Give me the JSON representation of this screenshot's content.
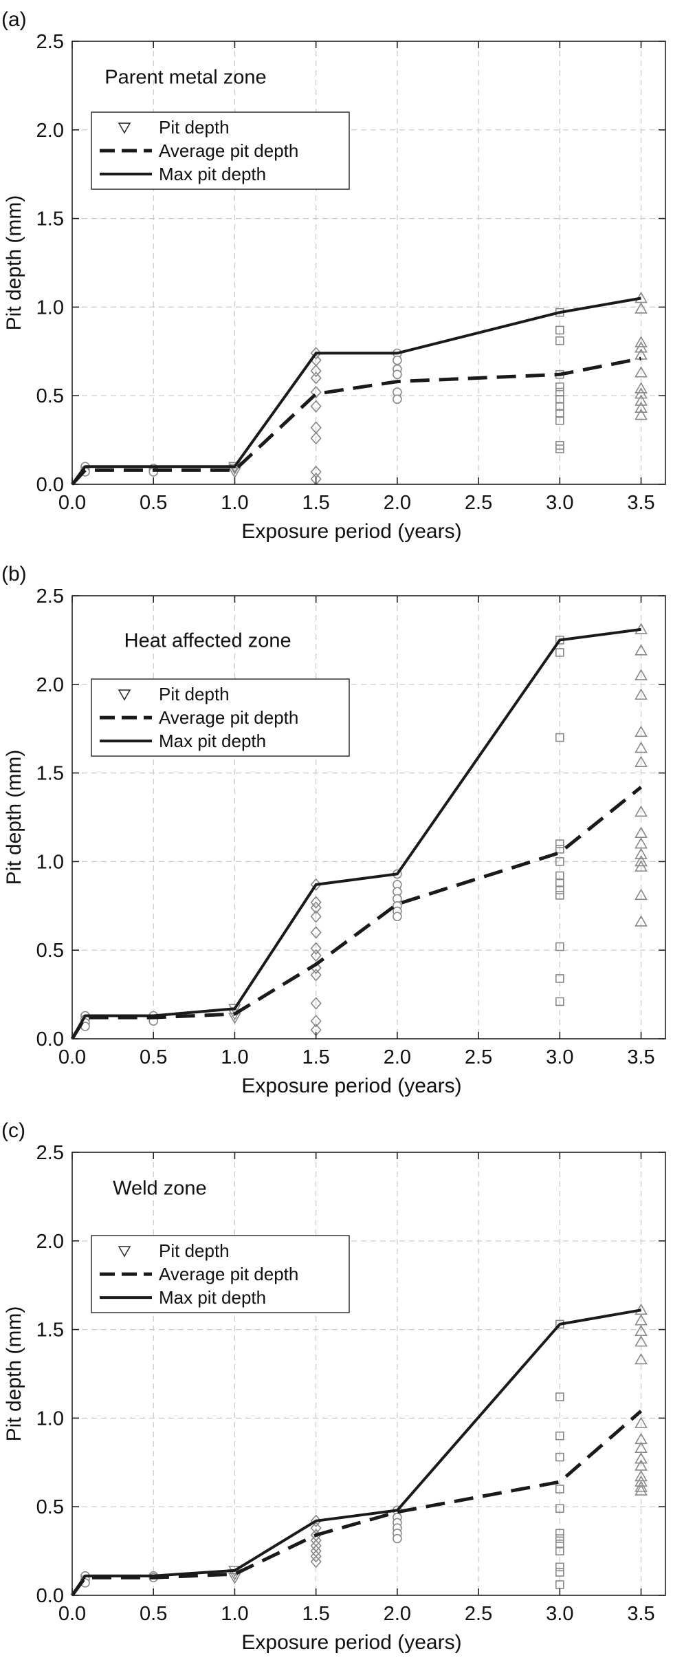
{
  "chart_data": [
    {
      "type": "scatter",
      "panel_label": "(a)",
      "annotation": "Parent metal zone",
      "xlabel": "Exposure period (years)",
      "ylabel": "Pit depth (mm)",
      "xlim": [
        0,
        3.65
      ],
      "ylim": [
        0,
        2.5
      ],
      "xticks": [
        "0.0",
        "0.5",
        "1.0",
        "1.5",
        "2.0",
        "2.5",
        "3.0",
        "3.5"
      ],
      "yticks": [
        "0.0",
        "0.5",
        "1.0",
        "1.5",
        "2.0",
        "2.5"
      ],
      "grid": "dashed",
      "legend": [
        {
          "label": "Pit depth",
          "style": "marker"
        },
        {
          "label": "Average pit depth",
          "style": "dashed"
        },
        {
          "label": "Max pit depth",
          "style": "solid"
        }
      ],
      "points": [
        {
          "x": 0.08,
          "y": 0.1,
          "m": "circle"
        },
        {
          "x": 0.08,
          "y": 0.08,
          "m": "circle"
        },
        {
          "x": 0.08,
          "y": 0.07,
          "m": "circle"
        },
        {
          "x": 0.5,
          "y": 0.09,
          "m": "circle"
        },
        {
          "x": 0.5,
          "y": 0.08,
          "m": "circle"
        },
        {
          "x": 0.5,
          "y": 0.07,
          "m": "circle"
        },
        {
          "x": 1.0,
          "y": 0.1,
          "m": "tri-down"
        },
        {
          "x": 1.0,
          "y": 0.09,
          "m": "tri-down"
        },
        {
          "x": 1.0,
          "y": 0.07,
          "m": "tri-down"
        },
        {
          "x": 1.5,
          "y": 0.74,
          "m": "diamond"
        },
        {
          "x": 1.5,
          "y": 0.7,
          "m": "diamond"
        },
        {
          "x": 1.5,
          "y": 0.64,
          "m": "diamond"
        },
        {
          "x": 1.5,
          "y": 0.6,
          "m": "diamond"
        },
        {
          "x": 1.5,
          "y": 0.52,
          "m": "diamond"
        },
        {
          "x": 1.5,
          "y": 0.44,
          "m": "diamond"
        },
        {
          "x": 1.5,
          "y": 0.32,
          "m": "diamond"
        },
        {
          "x": 1.5,
          "y": 0.26,
          "m": "diamond"
        },
        {
          "x": 1.5,
          "y": 0.07,
          "m": "diamond"
        },
        {
          "x": 1.5,
          "y": 0.03,
          "m": "diamond"
        },
        {
          "x": 2.0,
          "y": 0.74,
          "m": "circle"
        },
        {
          "x": 2.0,
          "y": 0.7,
          "m": "circle"
        },
        {
          "x": 2.0,
          "y": 0.65,
          "m": "circle"
        },
        {
          "x": 2.0,
          "y": 0.62,
          "m": "circle"
        },
        {
          "x": 2.0,
          "y": 0.52,
          "m": "circle"
        },
        {
          "x": 2.0,
          "y": 0.48,
          "m": "circle"
        },
        {
          "x": 3.0,
          "y": 0.97,
          "m": "square"
        },
        {
          "x": 3.0,
          "y": 0.87,
          "m": "square"
        },
        {
          "x": 3.0,
          "y": 0.81,
          "m": "square"
        },
        {
          "x": 3.0,
          "y": 0.62,
          "m": "square"
        },
        {
          "x": 3.0,
          "y": 0.55,
          "m": "square"
        },
        {
          "x": 3.0,
          "y": 0.52,
          "m": "square"
        },
        {
          "x": 3.0,
          "y": 0.48,
          "m": "square"
        },
        {
          "x": 3.0,
          "y": 0.44,
          "m": "square"
        },
        {
          "x": 3.0,
          "y": 0.4,
          "m": "square"
        },
        {
          "x": 3.0,
          "y": 0.36,
          "m": "square"
        },
        {
          "x": 3.0,
          "y": 0.22,
          "m": "square"
        },
        {
          "x": 3.0,
          "y": 0.2,
          "m": "square"
        },
        {
          "x": 3.5,
          "y": 1.05,
          "m": "tri-up"
        },
        {
          "x": 3.5,
          "y": 0.99,
          "m": "tri-up"
        },
        {
          "x": 3.5,
          "y": 0.8,
          "m": "tri-up"
        },
        {
          "x": 3.5,
          "y": 0.77,
          "m": "tri-up"
        },
        {
          "x": 3.5,
          "y": 0.73,
          "m": "tri-up"
        },
        {
          "x": 3.5,
          "y": 0.63,
          "m": "tri-up"
        },
        {
          "x": 3.5,
          "y": 0.54,
          "m": "tri-up"
        },
        {
          "x": 3.5,
          "y": 0.51,
          "m": "tri-up"
        },
        {
          "x": 3.5,
          "y": 0.47,
          "m": "tri-up"
        },
        {
          "x": 3.5,
          "y": 0.43,
          "m": "tri-up"
        },
        {
          "x": 3.5,
          "y": 0.39,
          "m": "tri-up"
        }
      ],
      "series": [
        {
          "name": "Average pit depth",
          "style": "dashed",
          "x": [
            0,
            0.08,
            0.5,
            1.0,
            1.5,
            2.0,
            3.0,
            3.5
          ],
          "y": [
            0,
            0.08,
            0.08,
            0.08,
            0.51,
            0.58,
            0.62,
            0.71
          ]
        },
        {
          "name": "Max pit depth",
          "style": "solid",
          "x": [
            0,
            0.08,
            0.5,
            1.0,
            1.5,
            2.0,
            3.0,
            3.5
          ],
          "y": [
            0,
            0.1,
            0.1,
            0.1,
            0.74,
            0.74,
            0.97,
            1.05
          ]
        }
      ]
    },
    {
      "type": "scatter",
      "panel_label": "(b)",
      "annotation": "Heat affected zone",
      "xlabel": "Exposure period (years)",
      "ylabel": "Pit depth (mm)",
      "xlim": [
        0,
        3.65
      ],
      "ylim": [
        0,
        2.5
      ],
      "xticks": [
        "0.0",
        "0.5",
        "1.0",
        "1.5",
        "2.0",
        "2.5",
        "3.0",
        "3.5"
      ],
      "yticks": [
        "0.0",
        "0.5",
        "1.0",
        "1.5",
        "2.0",
        "2.5"
      ],
      "grid": "dashed",
      "legend": [
        {
          "label": "Pit depth",
          "style": "marker"
        },
        {
          "label": "Average pit depth",
          "style": "dashed"
        },
        {
          "label": "Max pit depth",
          "style": "solid"
        }
      ],
      "points": [
        {
          "x": 0.08,
          "y": 0.13,
          "m": "circle"
        },
        {
          "x": 0.08,
          "y": 0.11,
          "m": "circle"
        },
        {
          "x": 0.08,
          "y": 0.09,
          "m": "circle"
        },
        {
          "x": 0.08,
          "y": 0.07,
          "m": "circle"
        },
        {
          "x": 0.5,
          "y": 0.13,
          "m": "circle"
        },
        {
          "x": 0.5,
          "y": 0.11,
          "m": "circle"
        },
        {
          "x": 0.5,
          "y": 0.1,
          "m": "circle"
        },
        {
          "x": 1.0,
          "y": 0.17,
          "m": "tri-down"
        },
        {
          "x": 1.0,
          "y": 0.14,
          "m": "tri-down"
        },
        {
          "x": 1.0,
          "y": 0.12,
          "m": "tri-down"
        },
        {
          "x": 1.5,
          "y": 0.87,
          "m": "diamond"
        },
        {
          "x": 1.5,
          "y": 0.77,
          "m": "diamond"
        },
        {
          "x": 1.5,
          "y": 0.74,
          "m": "diamond"
        },
        {
          "x": 1.5,
          "y": 0.69,
          "m": "diamond"
        },
        {
          "x": 1.5,
          "y": 0.6,
          "m": "diamond"
        },
        {
          "x": 1.5,
          "y": 0.51,
          "m": "diamond"
        },
        {
          "x": 1.5,
          "y": 0.47,
          "m": "diamond"
        },
        {
          "x": 1.5,
          "y": 0.4,
          "m": "diamond"
        },
        {
          "x": 1.5,
          "y": 0.36,
          "m": "diamond"
        },
        {
          "x": 1.5,
          "y": 0.2,
          "m": "diamond"
        },
        {
          "x": 1.5,
          "y": 0.1,
          "m": "diamond"
        },
        {
          "x": 1.5,
          "y": 0.05,
          "m": "diamond"
        },
        {
          "x": 2.0,
          "y": 0.93,
          "m": "circle"
        },
        {
          "x": 2.0,
          "y": 0.87,
          "m": "circle"
        },
        {
          "x": 2.0,
          "y": 0.83,
          "m": "circle"
        },
        {
          "x": 2.0,
          "y": 0.79,
          "m": "circle"
        },
        {
          "x": 2.0,
          "y": 0.75,
          "m": "circle"
        },
        {
          "x": 2.0,
          "y": 0.72,
          "m": "circle"
        },
        {
          "x": 2.0,
          "y": 0.69,
          "m": "circle"
        },
        {
          "x": 3.0,
          "y": 2.25,
          "m": "square"
        },
        {
          "x": 3.0,
          "y": 2.18,
          "m": "square"
        },
        {
          "x": 3.0,
          "y": 1.7,
          "m": "square"
        },
        {
          "x": 3.0,
          "y": 1.1,
          "m": "square"
        },
        {
          "x": 3.0,
          "y": 1.07,
          "m": "square"
        },
        {
          "x": 3.0,
          "y": 1.0,
          "m": "square"
        },
        {
          "x": 3.0,
          "y": 0.92,
          "m": "square"
        },
        {
          "x": 3.0,
          "y": 0.88,
          "m": "square"
        },
        {
          "x": 3.0,
          "y": 0.84,
          "m": "square"
        },
        {
          "x": 3.0,
          "y": 0.81,
          "m": "square"
        },
        {
          "x": 3.0,
          "y": 0.52,
          "m": "square"
        },
        {
          "x": 3.0,
          "y": 0.34,
          "m": "square"
        },
        {
          "x": 3.0,
          "y": 0.21,
          "m": "square"
        },
        {
          "x": 3.5,
          "y": 2.31,
          "m": "tri-up"
        },
        {
          "x": 3.5,
          "y": 2.19,
          "m": "tri-up"
        },
        {
          "x": 3.5,
          "y": 2.05,
          "m": "tri-up"
        },
        {
          "x": 3.5,
          "y": 1.94,
          "m": "tri-up"
        },
        {
          "x": 3.5,
          "y": 1.73,
          "m": "tri-up"
        },
        {
          "x": 3.5,
          "y": 1.64,
          "m": "tri-up"
        },
        {
          "x": 3.5,
          "y": 1.56,
          "m": "tri-up"
        },
        {
          "x": 3.5,
          "y": 1.28,
          "m": "tri-up"
        },
        {
          "x": 3.5,
          "y": 1.16,
          "m": "tri-up"
        },
        {
          "x": 3.5,
          "y": 1.1,
          "m": "tri-up"
        },
        {
          "x": 3.5,
          "y": 1.04,
          "m": "tri-up"
        },
        {
          "x": 3.5,
          "y": 1.0,
          "m": "tri-up"
        },
        {
          "x": 3.5,
          "y": 0.97,
          "m": "tri-up"
        },
        {
          "x": 3.5,
          "y": 0.81,
          "m": "tri-up"
        },
        {
          "x": 3.5,
          "y": 0.66,
          "m": "tri-up"
        }
      ],
      "series": [
        {
          "name": "Average pit depth",
          "style": "dashed",
          "x": [
            0,
            0.08,
            0.5,
            1.0,
            1.5,
            2.0,
            3.0,
            3.5
          ],
          "y": [
            0,
            0.12,
            0.12,
            0.14,
            0.42,
            0.76,
            1.05,
            1.42
          ]
        },
        {
          "name": "Max pit depth",
          "style": "solid",
          "x": [
            0,
            0.08,
            0.5,
            1.0,
            1.5,
            2.0,
            3.0,
            3.5
          ],
          "y": [
            0,
            0.13,
            0.13,
            0.17,
            0.87,
            0.93,
            2.25,
            2.31
          ]
        }
      ]
    },
    {
      "type": "scatter",
      "panel_label": "(c)",
      "annotation": "Weld zone",
      "xlabel": "Exposure period (years)",
      "ylabel": "Pit depth (mm)",
      "xlim": [
        0,
        3.65
      ],
      "ylim": [
        0,
        2.5
      ],
      "xticks": [
        "0.0",
        "0.5",
        "1.0",
        "1.5",
        "2.0",
        "2.5",
        "3.0",
        "3.5"
      ],
      "yticks": [
        "0.0",
        "0.5",
        "1.0",
        "1.5",
        "2.0",
        "2.5"
      ],
      "grid": "dashed",
      "legend": [
        {
          "label": "Pit depth",
          "style": "marker"
        },
        {
          "label": "Average pit depth",
          "style": "dashed"
        },
        {
          "label": "Max pit depth",
          "style": "solid"
        }
      ],
      "points": [
        {
          "x": 0.08,
          "y": 0.11,
          "m": "circle"
        },
        {
          "x": 0.08,
          "y": 0.09,
          "m": "circle"
        },
        {
          "x": 0.08,
          "y": 0.07,
          "m": "circle"
        },
        {
          "x": 0.5,
          "y": 0.11,
          "m": "circle"
        },
        {
          "x": 0.5,
          "y": 0.1,
          "m": "circle"
        },
        {
          "x": 1.0,
          "y": 0.14,
          "m": "tri-down"
        },
        {
          "x": 1.0,
          "y": 0.12,
          "m": "tri-down"
        },
        {
          "x": 1.0,
          "y": 0.1,
          "m": "tri-down"
        },
        {
          "x": 1.5,
          "y": 0.42,
          "m": "diamond"
        },
        {
          "x": 1.5,
          "y": 0.38,
          "m": "diamond"
        },
        {
          "x": 1.5,
          "y": 0.34,
          "m": "diamond"
        },
        {
          "x": 1.5,
          "y": 0.31,
          "m": "diamond"
        },
        {
          "x": 1.5,
          "y": 0.28,
          "m": "diamond"
        },
        {
          "x": 1.5,
          "y": 0.25,
          "m": "diamond"
        },
        {
          "x": 1.5,
          "y": 0.22,
          "m": "diamond"
        },
        {
          "x": 1.5,
          "y": 0.19,
          "m": "diamond"
        },
        {
          "x": 2.0,
          "y": 0.48,
          "m": "circle"
        },
        {
          "x": 2.0,
          "y": 0.44,
          "m": "circle"
        },
        {
          "x": 2.0,
          "y": 0.41,
          "m": "circle"
        },
        {
          "x": 2.0,
          "y": 0.38,
          "m": "circle"
        },
        {
          "x": 2.0,
          "y": 0.35,
          "m": "circle"
        },
        {
          "x": 2.0,
          "y": 0.32,
          "m": "circle"
        },
        {
          "x": 3.0,
          "y": 1.53,
          "m": "square"
        },
        {
          "x": 3.0,
          "y": 1.12,
          "m": "square"
        },
        {
          "x": 3.0,
          "y": 0.9,
          "m": "square"
        },
        {
          "x": 3.0,
          "y": 0.78,
          "m": "square"
        },
        {
          "x": 3.0,
          "y": 0.6,
          "m": "square"
        },
        {
          "x": 3.0,
          "y": 0.49,
          "m": "square"
        },
        {
          "x": 3.0,
          "y": 0.35,
          "m": "square"
        },
        {
          "x": 3.0,
          "y": 0.32,
          "m": "square"
        },
        {
          "x": 3.0,
          "y": 0.29,
          "m": "square"
        },
        {
          "x": 3.0,
          "y": 0.25,
          "m": "square"
        },
        {
          "x": 3.0,
          "y": 0.16,
          "m": "square"
        },
        {
          "x": 3.0,
          "y": 0.13,
          "m": "square"
        },
        {
          "x": 3.0,
          "y": 0.06,
          "m": "square"
        },
        {
          "x": 3.5,
          "y": 1.61,
          "m": "tri-up"
        },
        {
          "x": 3.5,
          "y": 1.55,
          "m": "tri-up"
        },
        {
          "x": 3.5,
          "y": 1.49,
          "m": "tri-up"
        },
        {
          "x": 3.5,
          "y": 1.43,
          "m": "tri-up"
        },
        {
          "x": 3.5,
          "y": 1.33,
          "m": "tri-up"
        },
        {
          "x": 3.5,
          "y": 0.97,
          "m": "tri-up"
        },
        {
          "x": 3.5,
          "y": 0.88,
          "m": "tri-up"
        },
        {
          "x": 3.5,
          "y": 0.83,
          "m": "tri-up"
        },
        {
          "x": 3.5,
          "y": 0.77,
          "m": "tri-up"
        },
        {
          "x": 3.5,
          "y": 0.73,
          "m": "tri-up"
        },
        {
          "x": 3.5,
          "y": 0.67,
          "m": "tri-up"
        },
        {
          "x": 3.5,
          "y": 0.64,
          "m": "tri-up"
        },
        {
          "x": 3.5,
          "y": 0.61,
          "m": "tri-up"
        },
        {
          "x": 3.5,
          "y": 0.59,
          "m": "tri-up"
        }
      ],
      "series": [
        {
          "name": "Average pit depth",
          "style": "dashed",
          "x": [
            0,
            0.08,
            0.5,
            1.0,
            1.5,
            2.0,
            3.0,
            3.5
          ],
          "y": [
            0,
            0.1,
            0.1,
            0.12,
            0.34,
            0.47,
            0.64,
            1.04
          ]
        },
        {
          "name": "Max pit depth",
          "style": "solid",
          "x": [
            0,
            0.08,
            0.5,
            1.0,
            1.5,
            2.0,
            3.0,
            3.5
          ],
          "y": [
            0,
            0.11,
            0.11,
            0.14,
            0.42,
            0.48,
            1.53,
            1.61
          ]
        }
      ]
    }
  ]
}
